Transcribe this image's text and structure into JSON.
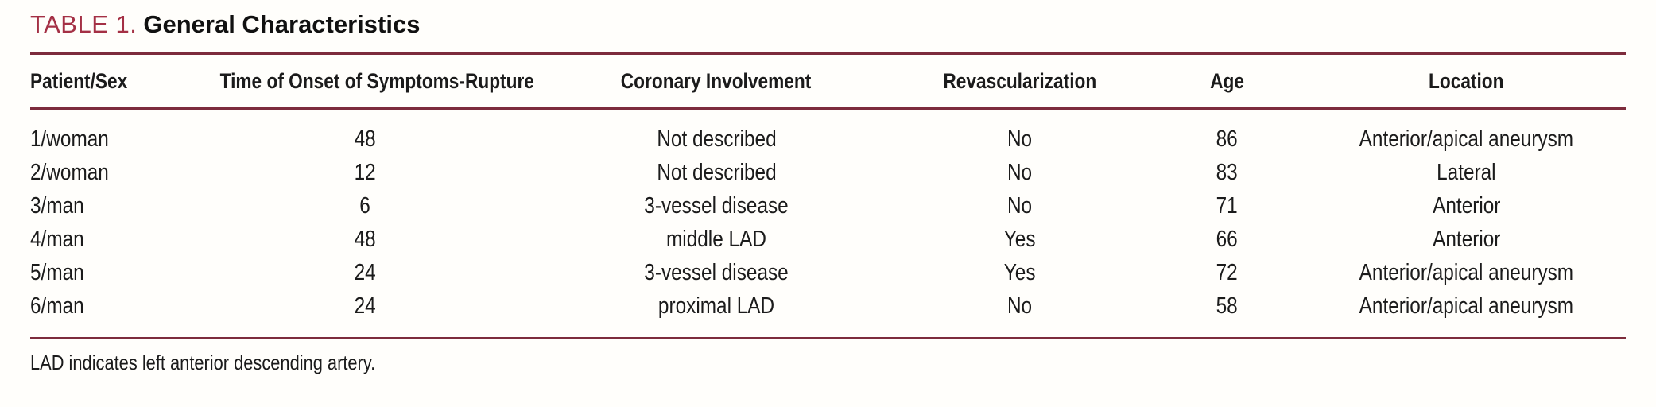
{
  "table": {
    "label": "TABLE 1.",
    "title": "General Characteristics",
    "columns": [
      "Patient/Sex",
      "Time of Onset of Symptoms-Rupture",
      "Coronary Involvement",
      "Revascularization",
      "Age",
      "Location"
    ],
    "rows": [
      [
        "1/woman",
        "48",
        "Not described",
        "No",
        "86",
        "Anterior/apical aneurysm"
      ],
      [
        "2/woman",
        "12",
        "Not described",
        "No",
        "83",
        "Lateral"
      ],
      [
        "3/man",
        "6",
        "3-vessel disease",
        "No",
        "71",
        "Anterior"
      ],
      [
        "4/man",
        "48",
        "middle LAD",
        "Yes",
        "66",
        "Anterior"
      ],
      [
        "5/man",
        "24",
        "3-vessel disease",
        "Yes",
        "72",
        "Anterior/apical aneurysm"
      ],
      [
        "6/man",
        "24",
        "proximal LAD",
        "No",
        "58",
        "Anterior/apical aneurysm"
      ]
    ],
    "footnote": "LAD indicates left anterior descending artery.",
    "colors": {
      "accent_label": "#a43045",
      "rule": "#7d2c3c",
      "text": "#1b1b1b",
      "background": "#fffefb"
    }
  }
}
